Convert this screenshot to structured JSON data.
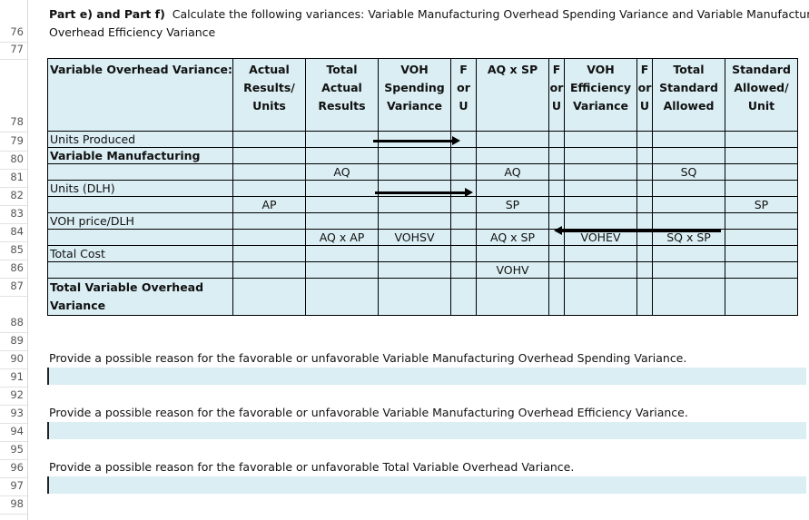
{
  "row_numbers": [
    "76",
    "77",
    "78",
    "79",
    "80",
    "81",
    "82",
    "83",
    "84",
    "85",
    "86",
    "87",
    "88",
    "89",
    "90",
    "91",
    "92",
    "93",
    "94",
    "95",
    "96",
    "97",
    "98"
  ],
  "intro": {
    "bold": "Part e) and Part f)",
    "line1": "Calculate the following variances:  Variable Manufacturing Overhead Spending Variance and Variable Manufacturing",
    "line2": "Overhead Efficiency Variance"
  },
  "table": {
    "headers": [
      "Variable Overhead Variance:",
      "Actual\nResults/\nUnits",
      "Total\nActual\nResults",
      "VOH\nSpending\nVariance",
      "F\nor\nU",
      "AQ x SP",
      "F\nor\nU",
      "VOH\nEfficiency\nVariance",
      "F\nor\nU",
      "Total\nStandard\nAllowed",
      "Standard\nAllowed/\nUnit"
    ],
    "rows": [
      [
        "Units Produced",
        "",
        "",
        "",
        "",
        "",
        "",
        "",
        "",
        "",
        ""
      ],
      [
        "Variable Manufacturing",
        "",
        "",
        "",
        "",
        "",
        "",
        "",
        "",
        "",
        ""
      ],
      [
        "",
        "",
        "AQ",
        "",
        "",
        "AQ",
        "",
        "",
        "",
        "SQ",
        ""
      ],
      [
        "Units (DLH)",
        "",
        "",
        "",
        "",
        "",
        "",
        "",
        "",
        "",
        ""
      ],
      [
        "",
        "AP",
        "",
        "",
        "",
        "SP",
        "",
        "",
        "",
        "",
        "SP"
      ],
      [
        "VOH price/DLH",
        "",
        "",
        "",
        "",
        "",
        "",
        "",
        "",
        "",
        ""
      ],
      [
        "",
        "",
        "AQ x AP",
        "VOHSV",
        "",
        "AQ x SP",
        "",
        "VOHEV",
        "",
        "SQ x SP",
        ""
      ],
      [
        "Total Cost",
        "",
        "",
        "",
        "",
        "",
        "",
        "",
        "",
        "",
        ""
      ],
      [
        "",
        "",
        "",
        "",
        "",
        "VOHV",
        "",
        "",
        "",
        "",
        ""
      ],
      [
        "Total Variable Overhead\nVariance",
        "",
        "",
        "",
        "",
        "",
        "",
        "",
        "",
        "",
        ""
      ]
    ]
  },
  "questions": [
    {
      "prompt": "Provide a possible reason for the favorable or unfavorable Variable Manufacturing Overhead Spending Variance.",
      "answer": ""
    },
    {
      "prompt": "Provide a possible reason for the favorable or unfavorable Variable Manufacturing Overhead Efficiency Variance.",
      "answer": ""
    },
    {
      "prompt": "Provide a possible reason for the favorable or unfavorable Total Variable Overhead Variance.",
      "answer": ""
    }
  ],
  "colors": {
    "cell_fill": "#daeef3",
    "border": "#000000"
  }
}
